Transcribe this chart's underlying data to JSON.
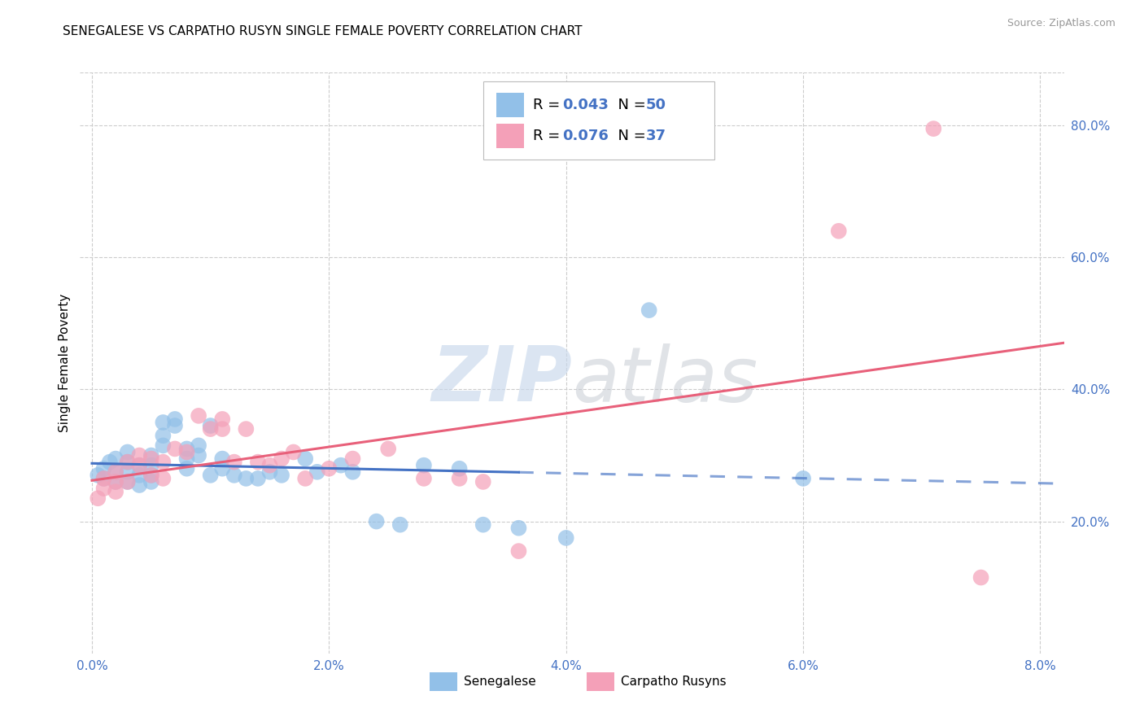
{
  "title": "SENEGALESE VS CARPATHO RUSYN SINGLE FEMALE POVERTY CORRELATION CHART",
  "source": "Source: ZipAtlas.com",
  "xlabel_ticks": [
    "0.0%",
    "2.0%",
    "4.0%",
    "6.0%",
    "8.0%"
  ],
  "xlabel_vals": [
    0.0,
    0.02,
    0.04,
    0.06,
    0.08
  ],
  "ylabel_ticks": [
    "20.0%",
    "40.0%",
    "60.0%",
    "80.0%"
  ],
  "ylabel_vals": [
    0.2,
    0.4,
    0.6,
    0.8
  ],
  "ylabel_label": "Single Female Poverty",
  "legend_label1": "Senegalese",
  "legend_label2": "Carpatho Rusyns",
  "color_blue": "#92C0E8",
  "color_pink": "#F4A0B8",
  "line_blue": "#4472C4",
  "line_pink": "#E8607A",
  "watermark_zip": "ZIP",
  "watermark_atlas": "atlas",
  "senegalese_x": [
    0.0005,
    0.001,
    0.001,
    0.0015,
    0.002,
    0.002,
    0.002,
    0.003,
    0.003,
    0.003,
    0.003,
    0.004,
    0.004,
    0.004,
    0.005,
    0.005,
    0.005,
    0.005,
    0.006,
    0.006,
    0.006,
    0.007,
    0.007,
    0.008,
    0.008,
    0.008,
    0.009,
    0.009,
    0.01,
    0.01,
    0.011,
    0.011,
    0.012,
    0.013,
    0.014,
    0.015,
    0.016,
    0.018,
    0.019,
    0.021,
    0.022,
    0.024,
    0.026,
    0.028,
    0.031,
    0.033,
    0.036,
    0.04,
    0.047,
    0.06
  ],
  "senegalese_y": [
    0.27,
    0.265,
    0.28,
    0.29,
    0.26,
    0.275,
    0.295,
    0.26,
    0.275,
    0.29,
    0.305,
    0.255,
    0.27,
    0.285,
    0.26,
    0.27,
    0.285,
    0.3,
    0.315,
    0.33,
    0.35,
    0.345,
    0.355,
    0.28,
    0.295,
    0.31,
    0.3,
    0.315,
    0.27,
    0.345,
    0.28,
    0.295,
    0.27,
    0.265,
    0.265,
    0.275,
    0.27,
    0.295,
    0.275,
    0.285,
    0.275,
    0.2,
    0.195,
    0.285,
    0.28,
    0.195,
    0.19,
    0.175,
    0.52,
    0.265
  ],
  "rusyn_x": [
    0.0005,
    0.001,
    0.001,
    0.002,
    0.002,
    0.002,
    0.003,
    0.003,
    0.004,
    0.004,
    0.005,
    0.005,
    0.006,
    0.006,
    0.007,
    0.008,
    0.009,
    0.01,
    0.011,
    0.011,
    0.012,
    0.013,
    0.014,
    0.015,
    0.016,
    0.017,
    0.018,
    0.02,
    0.022,
    0.025,
    0.028,
    0.031,
    0.033,
    0.036,
    0.063,
    0.071,
    0.075
  ],
  "rusyn_y": [
    0.235,
    0.25,
    0.265,
    0.245,
    0.26,
    0.275,
    0.26,
    0.29,
    0.285,
    0.3,
    0.27,
    0.295,
    0.265,
    0.29,
    0.31,
    0.305,
    0.36,
    0.34,
    0.34,
    0.355,
    0.29,
    0.34,
    0.29,
    0.285,
    0.295,
    0.305,
    0.265,
    0.28,
    0.295,
    0.31,
    0.265,
    0.265,
    0.26,
    0.155,
    0.64,
    0.795,
    0.115
  ],
  "sen_line_solid_end": 0.036,
  "sen_line_dash_start": 0.036,
  "sen_line_end": 0.082,
  "rus_line_end": 0.082,
  "xlim": [
    -0.001,
    0.082
  ],
  "ylim": [
    0.0,
    0.88
  ]
}
